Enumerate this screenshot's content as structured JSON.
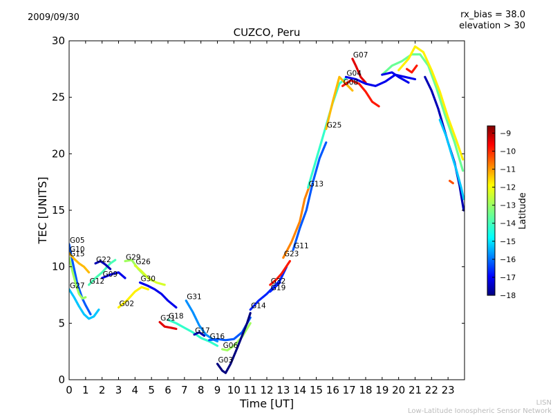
{
  "header": {
    "date": "2009/09/30",
    "rx_bias": "rx_bias = 38.0",
    "elevation": "elevation > 30"
  },
  "footer": {
    "org_short": "LISN",
    "org_long": "Low-Latitude Ionospheric Sensor Network"
  },
  "colors": {
    "jet": [
      "#00007f",
      "#0000ff",
      "#007fff",
      "#00ffff",
      "#7fff7f",
      "#ffff00",
      "#ff7f00",
      "#ff0000",
      "#7f0000"
    ]
  },
  "chart_data": {
    "type": "scatter",
    "title": "CUZCO, Peru",
    "xlabel": "Time [UT]",
    "ylabel": "TEC [UNITS]",
    "xlim": [
      0,
      24
    ],
    "ylim": [
      0,
      30
    ],
    "xticks": [
      "0",
      "1",
      "2",
      "3",
      "4",
      "5",
      "6",
      "7",
      "8",
      "9",
      "10",
      "11",
      "12",
      "13",
      "14",
      "15",
      "16",
      "17",
      "18",
      "19",
      "20",
      "21",
      "22",
      "23"
    ],
    "yticks": [
      "0",
      "5",
      "10",
      "15",
      "20",
      "25",
      "30"
    ],
    "colorbar": {
      "label": "Latitude",
      "range": [
        -18,
        -8.6
      ],
      "ticks": [
        "-9",
        "-10",
        "-11",
        "-12",
        "-13",
        "-14",
        "-15",
        "-16",
        "-17",
        "-18"
      ]
    },
    "series": [
      {
        "name": "G05",
        "lat": -16,
        "points": [
          [
            0,
            12.0
          ],
          [
            0.2,
            10.5
          ],
          [
            0.5,
            8.5
          ],
          [
            0.8,
            7.2
          ],
          [
            1.0,
            6.6
          ],
          [
            1.3,
            5.8
          ]
        ]
      },
      {
        "name": "G10",
        "lat": -11.5,
        "points": [
          [
            0,
            11.2
          ],
          [
            0.3,
            10.7
          ],
          [
            0.6,
            10.3
          ],
          [
            0.9,
            10.0
          ],
          [
            1.2,
            9.5
          ]
        ]
      },
      {
        "name": "G15",
        "lat": -13,
        "points": [
          [
            0,
            10.8
          ],
          [
            0.2,
            9.6
          ],
          [
            0.4,
            8.5
          ],
          [
            0.6,
            7.6
          ],
          [
            0.8,
            7.2
          ],
          [
            1.0,
            7.3
          ]
        ]
      },
      {
        "name": "G27",
        "lat": -15,
        "points": [
          [
            0,
            8.0
          ],
          [
            0.3,
            7.3
          ],
          [
            0.6,
            6.5
          ],
          [
            0.9,
            5.8
          ],
          [
            1.2,
            5.4
          ],
          [
            1.5,
            5.6
          ],
          [
            1.8,
            6.2
          ]
        ]
      },
      {
        "name": "G12",
        "lat": -13.8,
        "points": [
          [
            1.2,
            8.4
          ],
          [
            1.6,
            9.0
          ],
          [
            2.0,
            9.5
          ],
          [
            2.5,
            10.3
          ],
          [
            2.8,
            10.6
          ]
        ]
      },
      {
        "name": "G22",
        "lat": -17.5,
        "points": [
          [
            1.6,
            10.3
          ],
          [
            1.9,
            10.5
          ],
          [
            2.2,
            10.2
          ],
          [
            2.5,
            9.8
          ]
        ]
      },
      {
        "name": "G09",
        "lat": -17,
        "points": [
          [
            2.0,
            9.0
          ],
          [
            2.5,
            9.3
          ],
          [
            3.0,
            9.5
          ],
          [
            3.4,
            9.0
          ]
        ]
      },
      {
        "name": "G29",
        "lat": -13,
        "points": [
          [
            3.4,
            10.5
          ],
          [
            3.8,
            10.6
          ],
          [
            4.2,
            9.8
          ],
          [
            4.6,
            9.2
          ],
          [
            5.0,
            8.8
          ]
        ]
      },
      {
        "name": "G26",
        "lat": -12.5,
        "points": [
          [
            4.0,
            10.1
          ],
          [
            4.4,
            9.6
          ],
          [
            4.8,
            9.0
          ],
          [
            5.3,
            8.6
          ],
          [
            5.8,
            8.4
          ]
        ]
      },
      {
        "name": "G02",
        "lat": -12,
        "points": [
          [
            3.0,
            6.4
          ],
          [
            3.5,
            7.0
          ],
          [
            4.0,
            7.8
          ],
          [
            4.4,
            8.2
          ],
          [
            4.8,
            8.0
          ]
        ]
      },
      {
        "name": "G30",
        "lat": -17,
        "points": [
          [
            4.3,
            8.6
          ],
          [
            4.8,
            8.3
          ],
          [
            5.2,
            8.0
          ],
          [
            5.6,
            7.6
          ],
          [
            6.0,
            7.0
          ],
          [
            6.5,
            6.4
          ]
        ]
      },
      {
        "name": "G21",
        "lat": -9.5,
        "points": [
          [
            5.5,
            5.1
          ],
          [
            5.8,
            4.7
          ],
          [
            6.2,
            4.6
          ],
          [
            6.5,
            4.5
          ]
        ]
      },
      {
        "name": "G31",
        "lat": -15.5,
        "points": [
          [
            7.1,
            7.0
          ],
          [
            7.5,
            6.0
          ],
          [
            7.9,
            4.8
          ],
          [
            8.3,
            4.0
          ],
          [
            8.7,
            3.6
          ],
          [
            9.0,
            3.4
          ]
        ]
      },
      {
        "name": "G18",
        "lat": -14,
        "points": [
          [
            6.0,
            5.3
          ],
          [
            6.5,
            5.0
          ],
          [
            7.0,
            4.6
          ],
          [
            7.5,
            4.2
          ],
          [
            8.0,
            3.7
          ],
          [
            8.5,
            3.4
          ],
          [
            9.0,
            3.0
          ]
        ]
      },
      {
        "name": "G17",
        "lat": -17.5,
        "points": [
          [
            7.6,
            4.0
          ],
          [
            7.9,
            4.2
          ],
          [
            8.2,
            3.9
          ]
        ]
      },
      {
        "name": "G16",
        "lat": -16,
        "points": [
          [
            8.5,
            3.5
          ],
          [
            9.0,
            3.6
          ],
          [
            9.5,
            3.5
          ],
          [
            10.0,
            3.6
          ],
          [
            10.5,
            4.2
          ],
          [
            11.0,
            5.5
          ]
        ]
      },
      {
        "name": "G06",
        "lat": -13,
        "points": [
          [
            9.3,
            2.7
          ],
          [
            9.6,
            2.6
          ],
          [
            10.0,
            3.0
          ],
          [
            10.5,
            3.8
          ],
          [
            11.0,
            5.0
          ]
        ]
      },
      {
        "name": "G03",
        "lat": -18,
        "points": [
          [
            9.0,
            1.4
          ],
          [
            9.3,
            0.8
          ],
          [
            9.5,
            0.6
          ],
          [
            9.8,
            1.4
          ],
          [
            10.2,
            2.8
          ],
          [
            10.8,
            5.0
          ],
          [
            11.0,
            5.9
          ]
        ]
      },
      {
        "name": "G14",
        "lat": -16.5,
        "points": [
          [
            11.0,
            6.2
          ],
          [
            11.5,
            7.0
          ],
          [
            12.0,
            7.6
          ],
          [
            12.4,
            8.2
          ],
          [
            12.8,
            8.8
          ],
          [
            13.2,
            10.0
          ]
        ]
      },
      {
        "name": "G19",
        "lat": -16.5,
        "points": [
          [
            12.2,
            7.8
          ],
          [
            12.5,
            8.2
          ],
          [
            12.8,
            8.6
          ]
        ]
      },
      {
        "name": "G32",
        "lat": -10,
        "points": [
          [
            12.2,
            8.4
          ],
          [
            12.6,
            8.9
          ],
          [
            12.9,
            9.4
          ],
          [
            13.4,
            10.5
          ]
        ]
      },
      {
        "name": "G23",
        "lat": -11,
        "points": [
          [
            13.0,
            10.8
          ],
          [
            13.5,
            12.2
          ],
          [
            14.0,
            14.0
          ],
          [
            14.3,
            16.0
          ],
          [
            14.6,
            17.2
          ]
        ]
      },
      {
        "name": "G11",
        "lat": -16,
        "points": [
          [
            13.6,
            11.5
          ],
          [
            14.0,
            13.4
          ],
          [
            14.4,
            15.0
          ],
          [
            14.8,
            17.5
          ],
          [
            15.2,
            19.6
          ],
          [
            15.6,
            21.0
          ]
        ]
      },
      {
        "name": "G13",
        "lat": -14,
        "points": [
          [
            14.5,
            17.0
          ],
          [
            15.0,
            19.5
          ],
          [
            15.5,
            22.0
          ],
          [
            16.0,
            24.5
          ],
          [
            16.4,
            26.2
          ],
          [
            16.8,
            26.7
          ]
        ]
      },
      {
        "name": "G25",
        "lat": -11.5,
        "points": [
          [
            15.6,
            22.2
          ],
          [
            16.0,
            24.6
          ],
          [
            16.4,
            26.8
          ],
          [
            16.8,
            26.2
          ],
          [
            17.2,
            25.6
          ]
        ]
      },
      {
        "name": "G07",
        "lat": -9.5,
        "points": [
          [
            17.2,
            28.4
          ],
          [
            17.4,
            27.8
          ],
          [
            17.7,
            26.8
          ],
          [
            18.0,
            26.3
          ]
        ]
      },
      {
        "name": "G08",
        "lat": -10,
        "points": [
          [
            16.6,
            26.0
          ],
          [
            17.1,
            26.5
          ],
          [
            17.6,
            26.2
          ],
          [
            18.0,
            25.5
          ],
          [
            18.4,
            24.6
          ],
          [
            18.8,
            24.2
          ]
        ]
      },
      {
        "name": "G04",
        "lat": -17,
        "points": [
          [
            16.8,
            26.8
          ],
          [
            17.4,
            26.6
          ],
          [
            18.0,
            26.2
          ],
          [
            18.6,
            26.0
          ],
          [
            19.2,
            26.4
          ],
          [
            19.8,
            27.0
          ],
          [
            20.4,
            26.8
          ],
          [
            21.0,
            26.6
          ]
        ]
      },
      {
        "name": "",
        "lat": -13.5,
        "points": [
          [
            19.0,
            27.0
          ],
          [
            19.6,
            27.8
          ],
          [
            20.2,
            28.2
          ],
          [
            20.8,
            28.8
          ],
          [
            21.3,
            28.8
          ],
          [
            21.8,
            27.8
          ],
          [
            22.3,
            25.8
          ],
          [
            22.8,
            23.5
          ],
          [
            23.4,
            21.0
          ],
          [
            23.9,
            18.5
          ]
        ]
      },
      {
        "name": "",
        "lat": -12,
        "points": [
          [
            20.0,
            27.4
          ],
          [
            20.6,
            28.4
          ],
          [
            21.0,
            29.5
          ],
          [
            21.5,
            29.0
          ],
          [
            22.0,
            27.4
          ],
          [
            22.5,
            25.5
          ],
          [
            23.0,
            23.2
          ],
          [
            23.5,
            21.2
          ],
          [
            23.9,
            19.5
          ]
        ]
      },
      {
        "name": "",
        "lat": -17.5,
        "points": [
          [
            21.6,
            26.8
          ],
          [
            22.0,
            25.6
          ],
          [
            22.4,
            24.0
          ],
          [
            22.7,
            22.5
          ],
          [
            23.0,
            21.0
          ],
          [
            23.4,
            19.2
          ],
          [
            23.7,
            17.2
          ],
          [
            23.95,
            15.0
          ]
        ]
      },
      {
        "name": "",
        "lat": -15,
        "points": [
          [
            22.5,
            23.0
          ],
          [
            22.9,
            21.5
          ],
          [
            23.2,
            20.0
          ],
          [
            23.5,
            18.6
          ],
          [
            23.8,
            17.0
          ],
          [
            23.95,
            16.0
          ]
        ]
      },
      {
        "name": "",
        "lat": -10.5,
        "points": [
          [
            23.1,
            17.6
          ],
          [
            23.3,
            17.4
          ]
        ]
      },
      {
        "name": "",
        "lat": -10,
        "points": [
          [
            20.5,
            27.5
          ],
          [
            20.8,
            27.2
          ],
          [
            21.1,
            27.8
          ]
        ]
      },
      {
        "name": "",
        "lat": -17,
        "points": [
          [
            19.0,
            27.0
          ],
          [
            19.6,
            27.2
          ],
          [
            20.0,
            26.8
          ],
          [
            20.6,
            26.3
          ]
        ]
      }
    ]
  }
}
